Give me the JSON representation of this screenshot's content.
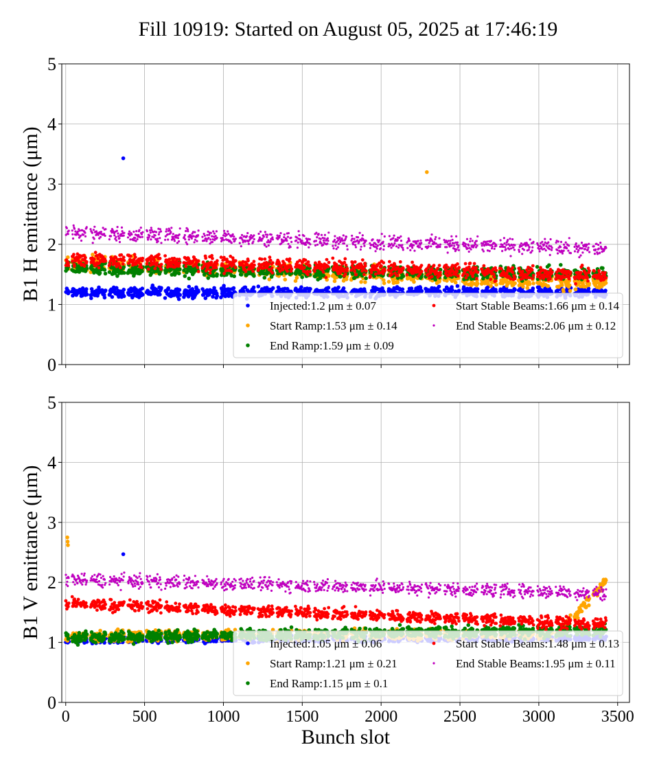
{
  "title": "Fill 10919: Started on August 05, 2025 at 17:46:19",
  "colors": {
    "Injected": "#0000ff",
    "Start Ramp": "#ffa500",
    "End Ramp": "#008000",
    "Start Stable Beams": "#ff0000",
    "End Stable Beams": "#bf00bf"
  },
  "chart_data": [
    {
      "type": "scatter",
      "ylabel": "B1 H emittance (μm)",
      "xlabel": "",
      "xlim": [
        -25,
        3575
      ],
      "ylim": [
        0,
        5
      ],
      "xticks": [
        "0",
        "500",
        "1000",
        "1500",
        "2000",
        "2500",
        "3000",
        "3500"
      ],
      "yticks": [
        "0",
        "1",
        "2",
        "3",
        "4",
        "5"
      ],
      "grid": true,
      "legend_position": "lower-right",
      "series": [
        {
          "name": "Injected",
          "legend": "Injected:1.2 μm ± 0.07",
          "level_first_slot": 1.2,
          "level_last_slot": 1.2,
          "spread": 0.07,
          "outliers": [
            [
              365,
              3.43
            ]
          ]
        },
        {
          "name": "Start Ramp",
          "legend": "Start Ramp:1.53 μm ± 0.14",
          "level_first_slot": 1.7,
          "level_last_slot": 1.35,
          "spread": 0.1,
          "outliers": [
            [
              2290,
              3.2
            ]
          ]
        },
        {
          "name": "End Ramp",
          "legend": "End Ramp:1.59 μm ± 0.09",
          "level_first_slot": 1.6,
          "level_last_slot": 1.5,
          "spread": 0.09,
          "outliers": []
        },
        {
          "name": "Start Stable Beams",
          "legend": "Start Stable Beams:1.66 μm ± 0.14",
          "level_first_slot": 1.75,
          "level_last_slot": 1.48,
          "spread": 0.1,
          "outliers": []
        },
        {
          "name": "End Stable Beams",
          "legend": "End Stable Beams:2.06 μm ± 0.12",
          "level_first_slot": 2.2,
          "level_last_slot": 1.92,
          "spread": 0.1,
          "outliers": []
        }
      ]
    },
    {
      "type": "scatter",
      "ylabel": "B1 V emittance (μm)",
      "xlabel": "Bunch slot",
      "xlim": [
        -25,
        3575
      ],
      "ylim": [
        0,
        5
      ],
      "xticks": [
        "0",
        "500",
        "1000",
        "1500",
        "2000",
        "2500",
        "3000",
        "3500"
      ],
      "yticks": [
        "0",
        "1",
        "2",
        "3",
        "4",
        "5"
      ],
      "grid": true,
      "legend_position": "lower-right",
      "series": [
        {
          "name": "Injected",
          "legend": "Injected:1.05 μm ± 0.06",
          "level_first_slot": 1.05,
          "level_last_slot": 1.08,
          "spread": 0.05,
          "outliers": [
            [
              365,
              2.47
            ]
          ]
        },
        {
          "name": "Start Ramp",
          "legend": "Start Ramp:1.21 μm ± 0.21",
          "level_first_slot": 1.1,
          "level_last_slot": 1.15,
          "spread": 0.07,
          "outliers": [
            [
              10,
              2.75
            ],
            [
              12,
              2.68
            ],
            [
              14,
              2.62
            ]
          ]
        },
        {
          "name": "End Ramp",
          "legend": "End Ramp:1.15 μm ± 0.1",
          "level_first_slot": 1.08,
          "level_last_slot": 1.2,
          "spread": 0.08,
          "outliers": []
        },
        {
          "name": "Start Stable Beams",
          "legend": "Start Stable Beams:1.48 μm ± 0.13",
          "level_first_slot": 1.65,
          "level_last_slot": 1.3,
          "spread": 0.08,
          "outliers": []
        },
        {
          "name": "End Stable Beams",
          "legend": "End Stable Beams:1.95 μm ± 0.11",
          "level_first_slot": 2.05,
          "level_last_slot": 1.82,
          "spread": 0.09,
          "outliers": []
        }
      ]
    }
  ]
}
